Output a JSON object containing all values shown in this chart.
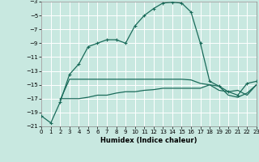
{
  "xlabel": "Humidex (Indice chaleur)",
  "background_color": "#c8e8e0",
  "grid_color": "#ffffff",
  "line_color": "#1a6b5a",
  "xlim": [
    0,
    23
  ],
  "ylim": [
    -21,
    -3
  ],
  "yticks": [
    -21,
    -19,
    -17,
    -15,
    -13,
    -11,
    -9,
    -7,
    -5,
    -3
  ],
  "xticks": [
    0,
    1,
    2,
    3,
    4,
    5,
    6,
    7,
    8,
    9,
    10,
    11,
    12,
    13,
    14,
    15,
    16,
    17,
    18,
    19,
    20,
    21,
    22,
    23
  ],
  "line1_x": [
    0,
    1,
    2,
    3,
    4,
    5,
    6,
    7,
    8,
    9,
    10,
    11,
    12,
    13,
    14,
    15,
    16,
    17,
    18,
    19,
    20,
    21,
    22,
    23
  ],
  "line1_y": [
    -19.5,
    -20.5,
    -17.5,
    -13.5,
    -12.0,
    -9.5,
    -9.0,
    -8.5,
    -8.5,
    -9.0,
    -6.5,
    -5.0,
    -4.0,
    -3.2,
    -3.1,
    -3.2,
    -4.5,
    -9.0,
    -14.5,
    -15.2,
    -16.0,
    -16.5,
    -14.8,
    -14.5
  ],
  "line2_x": [
    2,
    3,
    4,
    5,
    6,
    7,
    8,
    9,
    10,
    11,
    12,
    13,
    14,
    15,
    16,
    17,
    18,
    19,
    20,
    21,
    22,
    23
  ],
  "line2_y": [
    -17.2,
    -14.2,
    -14.2,
    -14.2,
    -14.2,
    -14.2,
    -14.2,
    -14.2,
    -14.2,
    -14.2,
    -14.2,
    -14.2,
    -14.2,
    -14.2,
    -14.3,
    -14.8,
    -15.0,
    -15.8,
    -16.0,
    -15.8,
    -16.5,
    -15.0
  ],
  "line3_x": [
    2,
    3,
    4,
    5,
    6,
    7,
    8,
    9,
    10,
    11,
    12,
    13,
    14,
    15,
    16,
    17,
    18,
    19,
    20,
    21,
    22,
    23
  ],
  "line3_y": [
    -17.0,
    -17.0,
    -17.0,
    -16.8,
    -16.5,
    -16.5,
    -16.2,
    -16.0,
    -16.0,
    -15.8,
    -15.7,
    -15.5,
    -15.5,
    -15.5,
    -15.5,
    -15.5,
    -15.0,
    -15.2,
    -16.5,
    -16.8,
    -16.2,
    -15.0
  ],
  "xlabel_fontsize": 6.0,
  "tick_fontsize": 5.0
}
